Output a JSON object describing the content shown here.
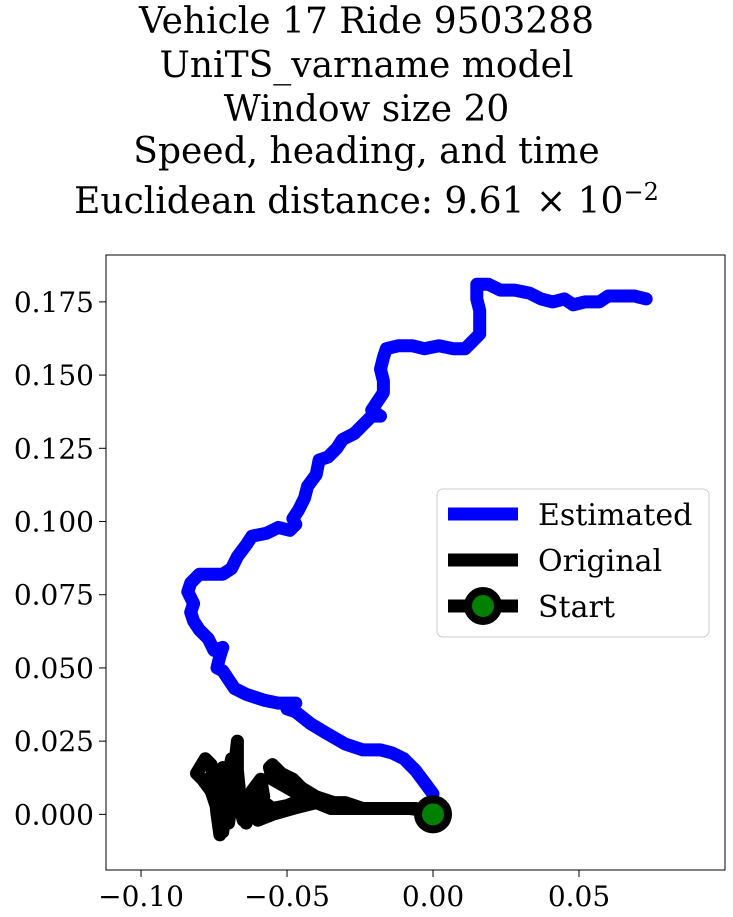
{
  "chart_data": {
    "type": "line",
    "title_lines": [
      "Vehicle 17 Ride 9503288",
      "UniTS_varname model",
      "Window size 20",
      "Speed, heading, and time",
      "Euclidean distance: 9.61 × 10"
    ],
    "title_exponent": "−2",
    "xlim": [
      -0.112,
      0.1
    ],
    "ylim": [
      -0.019,
      0.191
    ],
    "x_ticks": [
      {
        "v": -0.1,
        "label": "−0.10"
      },
      {
        "v": -0.05,
        "label": "−0.05"
      },
      {
        "v": 0.0,
        "label": "0.00"
      },
      {
        "v": 0.05,
        "label": "0.05"
      }
    ],
    "y_ticks": [
      {
        "v": 0.0,
        "label": "0.000"
      },
      {
        "v": 0.025,
        "label": "0.025"
      },
      {
        "v": 0.05,
        "label": "0.050"
      },
      {
        "v": 0.075,
        "label": "0.075"
      },
      {
        "v": 0.1,
        "label": "0.100"
      },
      {
        "v": 0.125,
        "label": "0.125"
      },
      {
        "v": 0.15,
        "label": "0.150"
      },
      {
        "v": 0.175,
        "label": "0.175"
      }
    ],
    "legend_position": "center-right",
    "colors": {
      "estimated": "#0000ff",
      "original": "#000000",
      "start_fill": "#008000"
    },
    "series": [
      {
        "name": "Estimated",
        "points": [
          [
            0.0,
            0.007
          ],
          [
            -0.003,
            0.011
          ],
          [
            -0.006,
            0.015
          ],
          [
            -0.01,
            0.019
          ],
          [
            -0.014,
            0.021
          ],
          [
            -0.018,
            0.022
          ],
          [
            -0.024,
            0.022
          ],
          [
            -0.03,
            0.024
          ],
          [
            -0.037,
            0.028
          ],
          [
            -0.042,
            0.031
          ],
          [
            -0.047,
            0.035
          ],
          [
            -0.05,
            0.036
          ],
          [
            -0.047,
            0.038
          ],
          [
            -0.053,
            0.038
          ],
          [
            -0.058,
            0.039
          ],
          [
            -0.064,
            0.041
          ],
          [
            -0.068,
            0.043
          ],
          [
            -0.07,
            0.046
          ],
          [
            -0.072,
            0.049
          ],
          [
            -0.074,
            0.05
          ],
          [
            -0.073,
            0.054
          ],
          [
            -0.072,
            0.057
          ],
          [
            -0.075,
            0.056
          ],
          [
            -0.077,
            0.06
          ],
          [
            -0.08,
            0.063
          ],
          [
            -0.082,
            0.066
          ],
          [
            -0.083,
            0.069
          ],
          [
            -0.082,
            0.072
          ],
          [
            -0.084,
            0.076
          ],
          [
            -0.083,
            0.079
          ],
          [
            -0.08,
            0.082
          ],
          [
            -0.076,
            0.082
          ],
          [
            -0.072,
            0.082
          ],
          [
            -0.069,
            0.084
          ],
          [
            -0.067,
            0.088
          ],
          [
            -0.064,
            0.092
          ],
          [
            -0.062,
            0.095
          ],
          [
            -0.057,
            0.096
          ],
          [
            -0.053,
            0.098
          ],
          [
            -0.049,
            0.097
          ],
          [
            -0.047,
            0.099
          ],
          [
            -0.048,
            0.101
          ],
          [
            -0.046,
            0.104
          ],
          [
            -0.044,
            0.108
          ],
          [
            -0.043,
            0.112
          ],
          [
            -0.04,
            0.116
          ],
          [
            -0.039,
            0.121
          ],
          [
            -0.036,
            0.122
          ],
          [
            -0.033,
            0.125
          ],
          [
            -0.031,
            0.128
          ],
          [
            -0.027,
            0.13
          ],
          [
            -0.024,
            0.133
          ],
          [
            -0.021,
            0.136
          ],
          [
            -0.018,
            0.136
          ],
          [
            -0.021,
            0.138
          ],
          [
            -0.019,
            0.141
          ],
          [
            -0.017,
            0.144
          ],
          [
            -0.017,
            0.148
          ],
          [
            -0.018,
            0.152
          ],
          [
            -0.017,
            0.156
          ],
          [
            -0.016,
            0.159
          ],
          [
            -0.012,
            0.16
          ],
          [
            -0.007,
            0.16
          ],
          [
            -0.003,
            0.159
          ],
          [
            0.002,
            0.16
          ],
          [
            0.007,
            0.159
          ],
          [
            0.011,
            0.159
          ],
          [
            0.013,
            0.161
          ],
          [
            0.016,
            0.164
          ],
          [
            0.016,
            0.168
          ],
          [
            0.016,
            0.172
          ],
          [
            0.015,
            0.176
          ],
          [
            0.015,
            0.181
          ],
          [
            0.019,
            0.181
          ],
          [
            0.023,
            0.179
          ],
          [
            0.028,
            0.179
          ],
          [
            0.033,
            0.178
          ],
          [
            0.037,
            0.176
          ],
          [
            0.041,
            0.175
          ],
          [
            0.045,
            0.176
          ],
          [
            0.048,
            0.174
          ],
          [
            0.052,
            0.175
          ],
          [
            0.057,
            0.175
          ],
          [
            0.06,
            0.177
          ],
          [
            0.065,
            0.177
          ],
          [
            0.069,
            0.177
          ],
          [
            0.073,
            0.176
          ]
        ]
      },
      {
        "name": "Original",
        "points": [
          [
            0.0,
            0.001
          ],
          [
            -0.008,
            0.002
          ],
          [
            -0.016,
            0.002
          ],
          [
            -0.024,
            0.002
          ],
          [
            -0.03,
            0.004
          ],
          [
            -0.04,
            0.004
          ],
          [
            -0.048,
            0.008
          ],
          [
            -0.055,
            0.012
          ],
          [
            -0.056,
            0.016
          ],
          [
            -0.055,
            0.017
          ],
          [
            -0.052,
            0.014
          ],
          [
            -0.048,
            0.012
          ],
          [
            -0.045,
            0.009
          ],
          [
            -0.04,
            0.006
          ],
          [
            -0.034,
            0.004
          ],
          [
            -0.03,
            0.003
          ],
          [
            -0.04,
            0.004
          ],
          [
            -0.048,
            0.002
          ],
          [
            -0.055,
            0.0
          ],
          [
            -0.06,
            -0.002
          ],
          [
            -0.058,
            0.006
          ],
          [
            -0.059,
            0.012
          ],
          [
            -0.062,
            0.008
          ],
          [
            -0.063,
            0.0
          ],
          [
            -0.064,
            -0.003
          ],
          [
            -0.066,
            0.005
          ],
          [
            -0.067,
            0.015
          ],
          [
            -0.067,
            0.025
          ],
          [
            -0.068,
            0.016
          ],
          [
            -0.069,
            0.005
          ],
          [
            -0.07,
            -0.003
          ],
          [
            -0.071,
            0.006
          ],
          [
            -0.072,
            0.016
          ],
          [
            -0.073,
            0.008
          ],
          [
            -0.073,
            -0.007
          ],
          [
            -0.074,
            0.0
          ],
          [
            -0.075,
            0.01
          ],
          [
            -0.076,
            0.017
          ],
          [
            -0.078,
            0.019
          ],
          [
            -0.081,
            0.014
          ],
          [
            -0.079,
            0.012
          ],
          [
            -0.076,
            0.008
          ],
          [
            -0.074,
            0.002
          ],
          [
            -0.073,
            -0.003
          ],
          [
            -0.072,
            -0.006
          ],
          [
            -0.071,
            0.004
          ],
          [
            -0.07,
            0.014
          ],
          [
            -0.069,
            0.019
          ],
          [
            -0.067,
            0.01
          ],
          [
            -0.066,
            0.002
          ],
          [
            -0.065,
            -0.002
          ],
          [
            -0.062,
            0.002
          ],
          [
            -0.059,
            0.005
          ],
          [
            -0.055,
            0.002
          ],
          [
            -0.05,
            0.003
          ],
          [
            -0.045,
            0.005
          ],
          [
            -0.04,
            0.004
          ],
          [
            -0.035,
            0.002
          ],
          [
            -0.028,
            0.002
          ],
          [
            -0.02,
            0.002
          ],
          [
            -0.012,
            0.002
          ],
          [
            -0.006,
            0.002
          ],
          [
            0.0,
            0.001
          ]
        ]
      },
      {
        "name": "Start",
        "points": [
          [
            0.0,
            0.0
          ]
        ]
      }
    ]
  }
}
